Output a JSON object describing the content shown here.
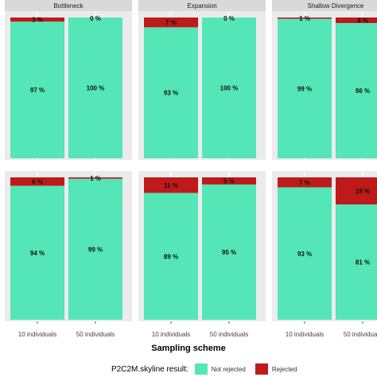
{
  "chart_data": {
    "type": "bar",
    "stacked": true,
    "facet_columns": [
      "Bottleneck",
      "Expansion",
      "Shallow Divergence"
    ],
    "categories": [
      "10 individuals",
      "50 individuals"
    ],
    "xlabel": "Sampling scheme",
    "ylim": [
      0,
      100
    ],
    "legend": {
      "title": "P2C2M.skyline result:",
      "placement": "bottom",
      "entries": [
        {
          "name": "Not rejected",
          "color": "#54E6B7"
        },
        {
          "name": "Rejected",
          "color": "#BE1A1A"
        }
      ]
    },
    "panels": [
      {
        "row": 1,
        "facet": "Bottleneck",
        "not_rejected": [
          97,
          100
        ],
        "rejected": [
          3,
          0
        ]
      },
      {
        "row": 1,
        "facet": "Expansion",
        "not_rejected": [
          93,
          100
        ],
        "rejected": [
          7,
          0
        ]
      },
      {
        "row": 1,
        "facet": "Shallow Divergence",
        "not_rejected": [
          99,
          96
        ],
        "rejected": [
          1,
          4
        ]
      },
      {
        "row": 2,
        "facet": "Bottleneck",
        "not_rejected": [
          94,
          99
        ],
        "rejected": [
          6,
          1
        ]
      },
      {
        "row": 2,
        "facet": "Expansion",
        "not_rejected": [
          89,
          95
        ],
        "rejected": [
          11,
          5
        ]
      },
      {
        "row": 2,
        "facet": "Shallow Divergence",
        "not_rejected": [
          93,
          81
        ],
        "rejected": [
          7,
          19
        ]
      }
    ],
    "grid": true
  }
}
